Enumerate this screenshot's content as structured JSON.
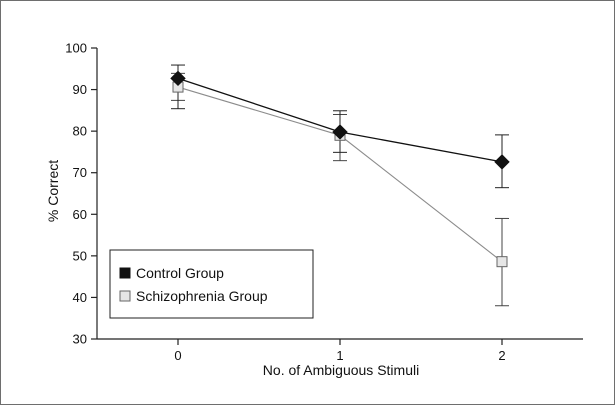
{
  "chart_data": {
    "type": "line",
    "title": "",
    "xlabel": "No. of Ambiguous Stimuli",
    "ylabel": "% Correct",
    "x": [
      0,
      1,
      2
    ],
    "xlim": [
      -0.5,
      2.5
    ],
    "ylim": [
      30,
      100
    ],
    "yticks": [
      30,
      40,
      50,
      60,
      70,
      80,
      90,
      100
    ],
    "grid": false,
    "legend_position": "bottom-left",
    "series": [
      {
        "name": "Control Group",
        "marker": "filled-diamond",
        "color": "#111111",
        "values": [
          92.7,
          79.8,
          72.6
        ],
        "error_low": [
          85.4,
          74.9,
          66.4
        ],
        "error_high": [
          95.9,
          84.9,
          79.1
        ]
      },
      {
        "name": "Schizophrenia Group",
        "marker": "open-square",
        "color": "#8c8c8c",
        "values": [
          90.6,
          79.0,
          48.6
        ],
        "error_low": [
          87.4,
          72.9,
          38.0
        ],
        "error_high": [
          93.9,
          84.0,
          59.0
        ]
      }
    ]
  }
}
